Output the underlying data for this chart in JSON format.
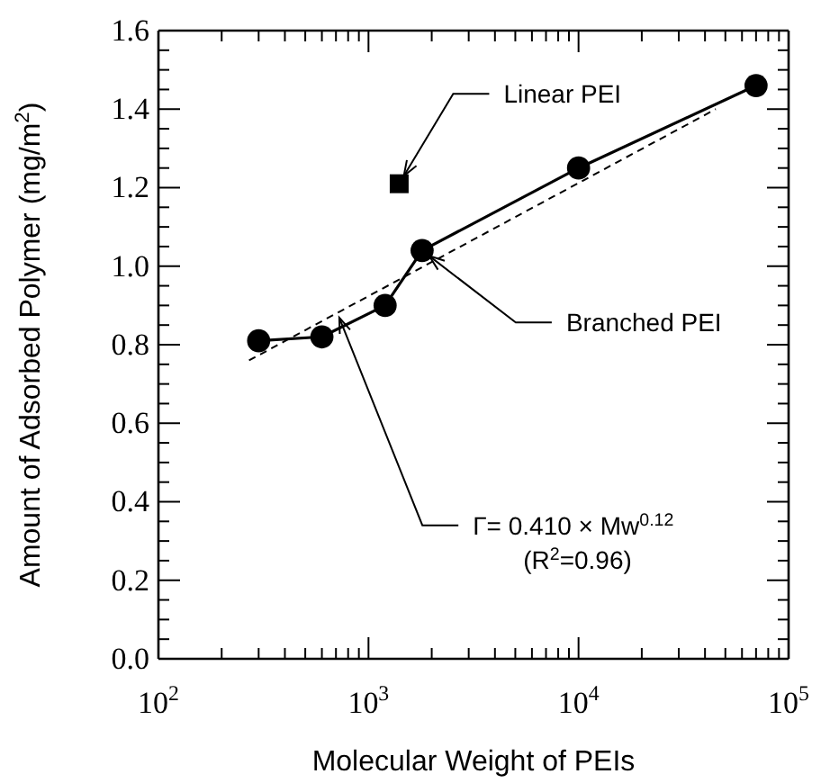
{
  "chart_data": {
    "type": "line",
    "xlabel": "Molecular Weight of PEIs",
    "ylabel": "Amount of Adsorbed Polymer (mg/m$^{2}$)",
    "log": "x",
    "xlim": [
      100,
      100000
    ],
    "xticks": [
      {
        "value": 100,
        "label": "10$^{2}$"
      },
      {
        "value": 200,
        "label": null
      },
      {
        "value": 300,
        "label": null
      },
      {
        "value": 400,
        "label": null
      },
      {
        "value": 500,
        "label": null
      },
      {
        "value": 600,
        "label": null
      },
      {
        "value": 700,
        "label": null
      },
      {
        "value": 800,
        "label": null
      },
      {
        "value": 900,
        "label": null
      },
      {
        "value": 1000,
        "label": "10$^{3}$"
      },
      {
        "value": 2000,
        "label": null
      },
      {
        "value": 3000,
        "label": null
      },
      {
        "value": 4000,
        "label": null
      },
      {
        "value": 5000,
        "label": null
      },
      {
        "value": 6000,
        "label": null
      },
      {
        "value": 7000,
        "label": null
      },
      {
        "value": 8000,
        "label": null
      },
      {
        "value": 9000,
        "label": null
      },
      {
        "value": 10000,
        "label": "10$^{4}$"
      },
      {
        "value": 20000,
        "label": null
      },
      {
        "value": 30000,
        "label": null
      },
      {
        "value": 40000,
        "label": null
      },
      {
        "value": 50000,
        "label": null
      },
      {
        "value": 60000,
        "label": null
      },
      {
        "value": 70000,
        "label": null
      },
      {
        "value": 80000,
        "label": null
      },
      {
        "value": 90000,
        "label": null
      },
      {
        "value": 100000,
        "label": "10$^{5}$"
      }
    ],
    "ylim": [
      0,
      1.6
    ],
    "yticks": [
      {
        "value": 0,
        "label": "0.0"
      },
      {
        "value": 0.05,
        "label": null
      },
      {
        "value": 0.1,
        "label": null
      },
      {
        "value": 0.15,
        "label": null
      },
      {
        "value": 0.2,
        "label": "0.2"
      },
      {
        "value": 0.25,
        "label": null
      },
      {
        "value": 0.3,
        "label": null
      },
      {
        "value": 0.35,
        "label": null
      },
      {
        "value": 0.4,
        "label": "0.4"
      },
      {
        "value": 0.45,
        "label": null
      },
      {
        "value": 0.5,
        "label": null
      },
      {
        "value": 0.55,
        "label": null
      },
      {
        "value": 0.6,
        "label": "0.6"
      },
      {
        "value": 0.65,
        "label": null
      },
      {
        "value": 0.7,
        "label": null
      },
      {
        "value": 0.75,
        "label": null
      },
      {
        "value": 0.8,
        "label": "0.8"
      },
      {
        "value": 0.85,
        "label": null
      },
      {
        "value": 0.9,
        "label": null
      },
      {
        "value": 0.95,
        "label": null
      },
      {
        "value": 1.0,
        "label": "1.0"
      },
      {
        "value": 1.05,
        "label": null
      },
      {
        "value": 1.1,
        "label": null
      },
      {
        "value": 1.15,
        "label": null
      },
      {
        "value": 1.2,
        "label": "1.2"
      },
      {
        "value": 1.25,
        "label": null
      },
      {
        "value": 1.3,
        "label": null
      },
      {
        "value": 1.35,
        "label": null
      },
      {
        "value": 1.4,
        "label": "1.4"
      },
      {
        "value": 1.45,
        "label": null
      },
      {
        "value": 1.5,
        "label": null
      },
      {
        "value": 1.55,
        "label": null
      },
      {
        "value": 1.6,
        "label": "1.6"
      }
    ],
    "grid": false,
    "series": [
      {
        "color": "#000000",
        "marker": "circle",
        "line_style": "solid",
        "x": [
          300,
          600,
          1200,
          1800,
          10000,
          70000
        ],
        "values": [
          0.81,
          0.82,
          0.9,
          1.04,
          1.25,
          1.46
        ]
      },
      {
        "type": "scatter",
        "color": "#000000",
        "marker": "square",
        "x": [
          1400
        ],
        "values": [
          1.21
        ]
      },
      {
        "type": "line",
        "color": "#000000",
        "marker": "none",
        "line_style": "dashed",
        "x": [
          270,
          45000
        ],
        "values": [
          0.76,
          1.4
        ]
      }
    ],
    "annotations": [
      {
        "text": "Linear PEI",
        "x": 1400,
        "y": 1.21
      },
      {
        "text": "Branched PEI",
        "x": 1800,
        "y": 1.04
      },
      {
        "text": "Γ= 0.410 × Mw$^{0.12}$",
        "x": 700,
        "y": 0.89
      },
      "(R$^{2}$=0.96)"
    ]
  }
}
